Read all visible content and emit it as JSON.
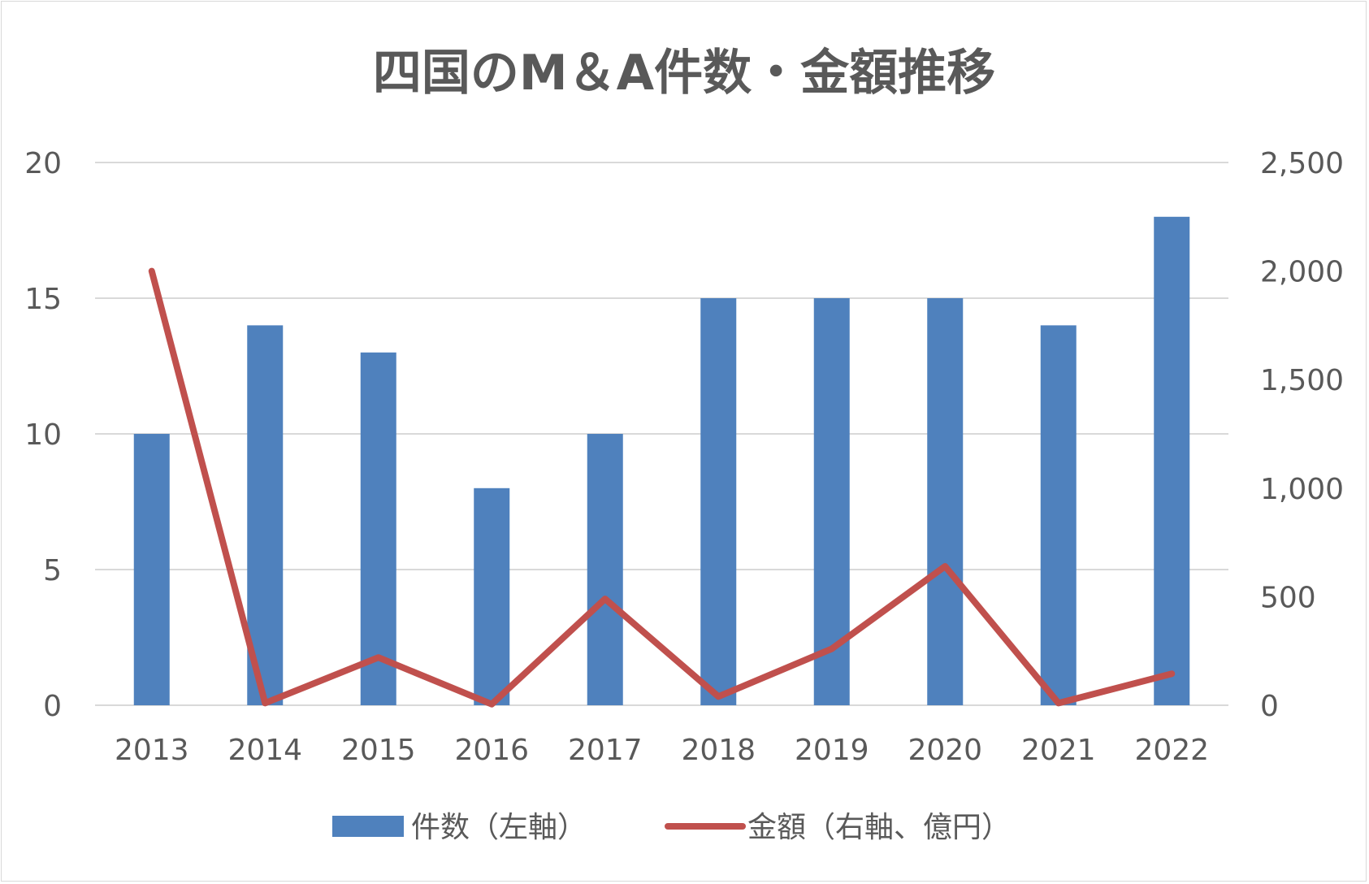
{
  "chart_data": {
    "type": "bar",
    "title": "四国のM＆A件数・金額推移",
    "categories": [
      "2013",
      "2014",
      "2015",
      "2016",
      "2017",
      "2018",
      "2019",
      "2020",
      "2021",
      "2022"
    ],
    "series": [
      {
        "name": "件数（左軸）",
        "type": "bar",
        "axis": "left",
        "color": "#4f81bd",
        "values": [
          10,
          14,
          13,
          8,
          10,
          15,
          15,
          15,
          14,
          18
        ]
      },
      {
        "name": "金額（右軸、億円）",
        "type": "line",
        "axis": "right",
        "color": "#c0504d",
        "values": [
          2000,
          10,
          220,
          5,
          490,
          40,
          260,
          640,
          10,
          145
        ]
      }
    ],
    "left_axis": {
      "min": 0,
      "max": 20,
      "ticks": [
        "0",
        "5",
        "10",
        "15",
        "20"
      ]
    },
    "right_axis": {
      "min": 0,
      "max": 2500,
      "ticks": [
        "0",
        "500",
        "1,000",
        "1,500",
        "2,000",
        "2,500"
      ]
    },
    "grid": true,
    "legend": "bottom"
  }
}
